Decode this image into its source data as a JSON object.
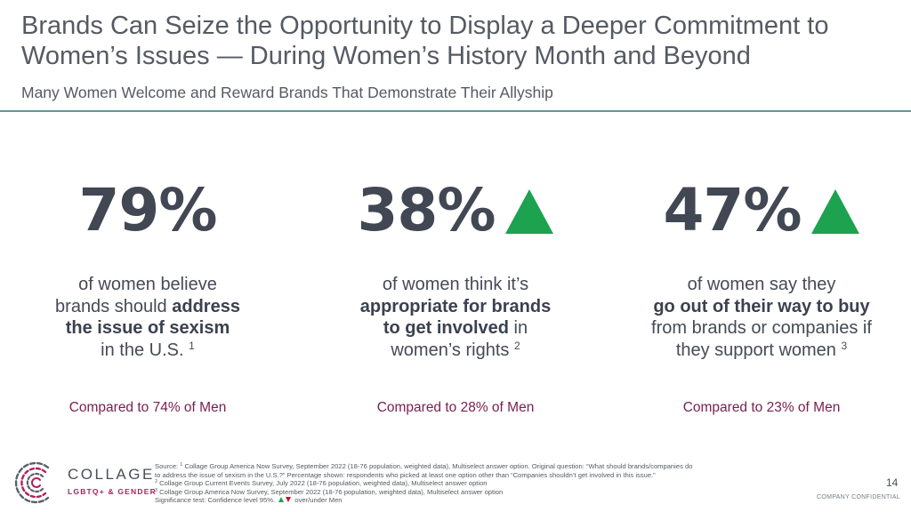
{
  "header": {
    "title_line1": "Brands Can Seize the Opportunity to Display a Deeper Commitment to",
    "title_line2": "Women’s Issues — During Women’s History Month and Beyond",
    "subtitle": "Many Women Welcome and Reward Brands That Demonstrate Their Allyship",
    "rule_color": "#5d9a9a"
  },
  "stats": [
    {
      "value": "79%",
      "significance": "none",
      "desc_pre": "of women believe",
      "desc_pre2": "brands should ",
      "desc_bold": "address",
      "desc_bold2": "the issue of sexism",
      "desc_post": "in the U.S.",
      "footnote_ref": "1",
      "comparison": "Compared to 74% of Men"
    },
    {
      "value": "38%",
      "significance": "up",
      "desc_pre": "of women think it’s",
      "desc_bold": "appropriate for brands",
      "desc_bold2": "to get involved",
      "desc_mid": " in",
      "desc_post": "women’s rights",
      "footnote_ref": "2",
      "comparison": "Compared to 28% of Men"
    },
    {
      "value": "47%",
      "significance": "up",
      "desc_pre": "of women say they",
      "desc_bold": "go out of their way to buy",
      "desc_post": "from brands or companies if",
      "desc_post2": "they support women",
      "footnote_ref": "3",
      "comparison": "Compared to 23% of Men"
    }
  ],
  "colors": {
    "significant_up": "#1da24f",
    "significant_down": "#c8102e",
    "comparison_text": "#7b2050",
    "brand_magenta": "#b01f5e"
  },
  "logo": {
    "name": "COLLAGE",
    "tagline": "LGBTQ+ & GENDER",
    "icon": "collage-ring-mark-icon"
  },
  "footnotes": {
    "source_line1_pre": "Source: ",
    "source_sup": "1",
    "source_line1": " Collage Group America Now Survey, September 2022 (18-76 population, weighted data), Multiselect answer option. Original question:  “What should brands/companies do",
    "source_line2": "to address the issue of sexism in the U.S.?” Percentage shown: respondents who picked at least one option other than “Companies shouldn’t get involved in this issue.”",
    "fn2_sup": "2",
    "fn2": " Collage Group Current Events Survey, July 2022 (18-76 population, weighted data), Multiselect answer option",
    "fn3_sup": "3",
    "fn3": " Collage Group America Now Survey, September 2022 (18-76 population, weighted data), Multiselect answer option",
    "significance_pre": "Significance test: Confidence level 95%.",
    "significance_post": "over/under Men"
  },
  "page": {
    "number": "14",
    "confidential": "COMPANY CONFIDENTIAL"
  }
}
